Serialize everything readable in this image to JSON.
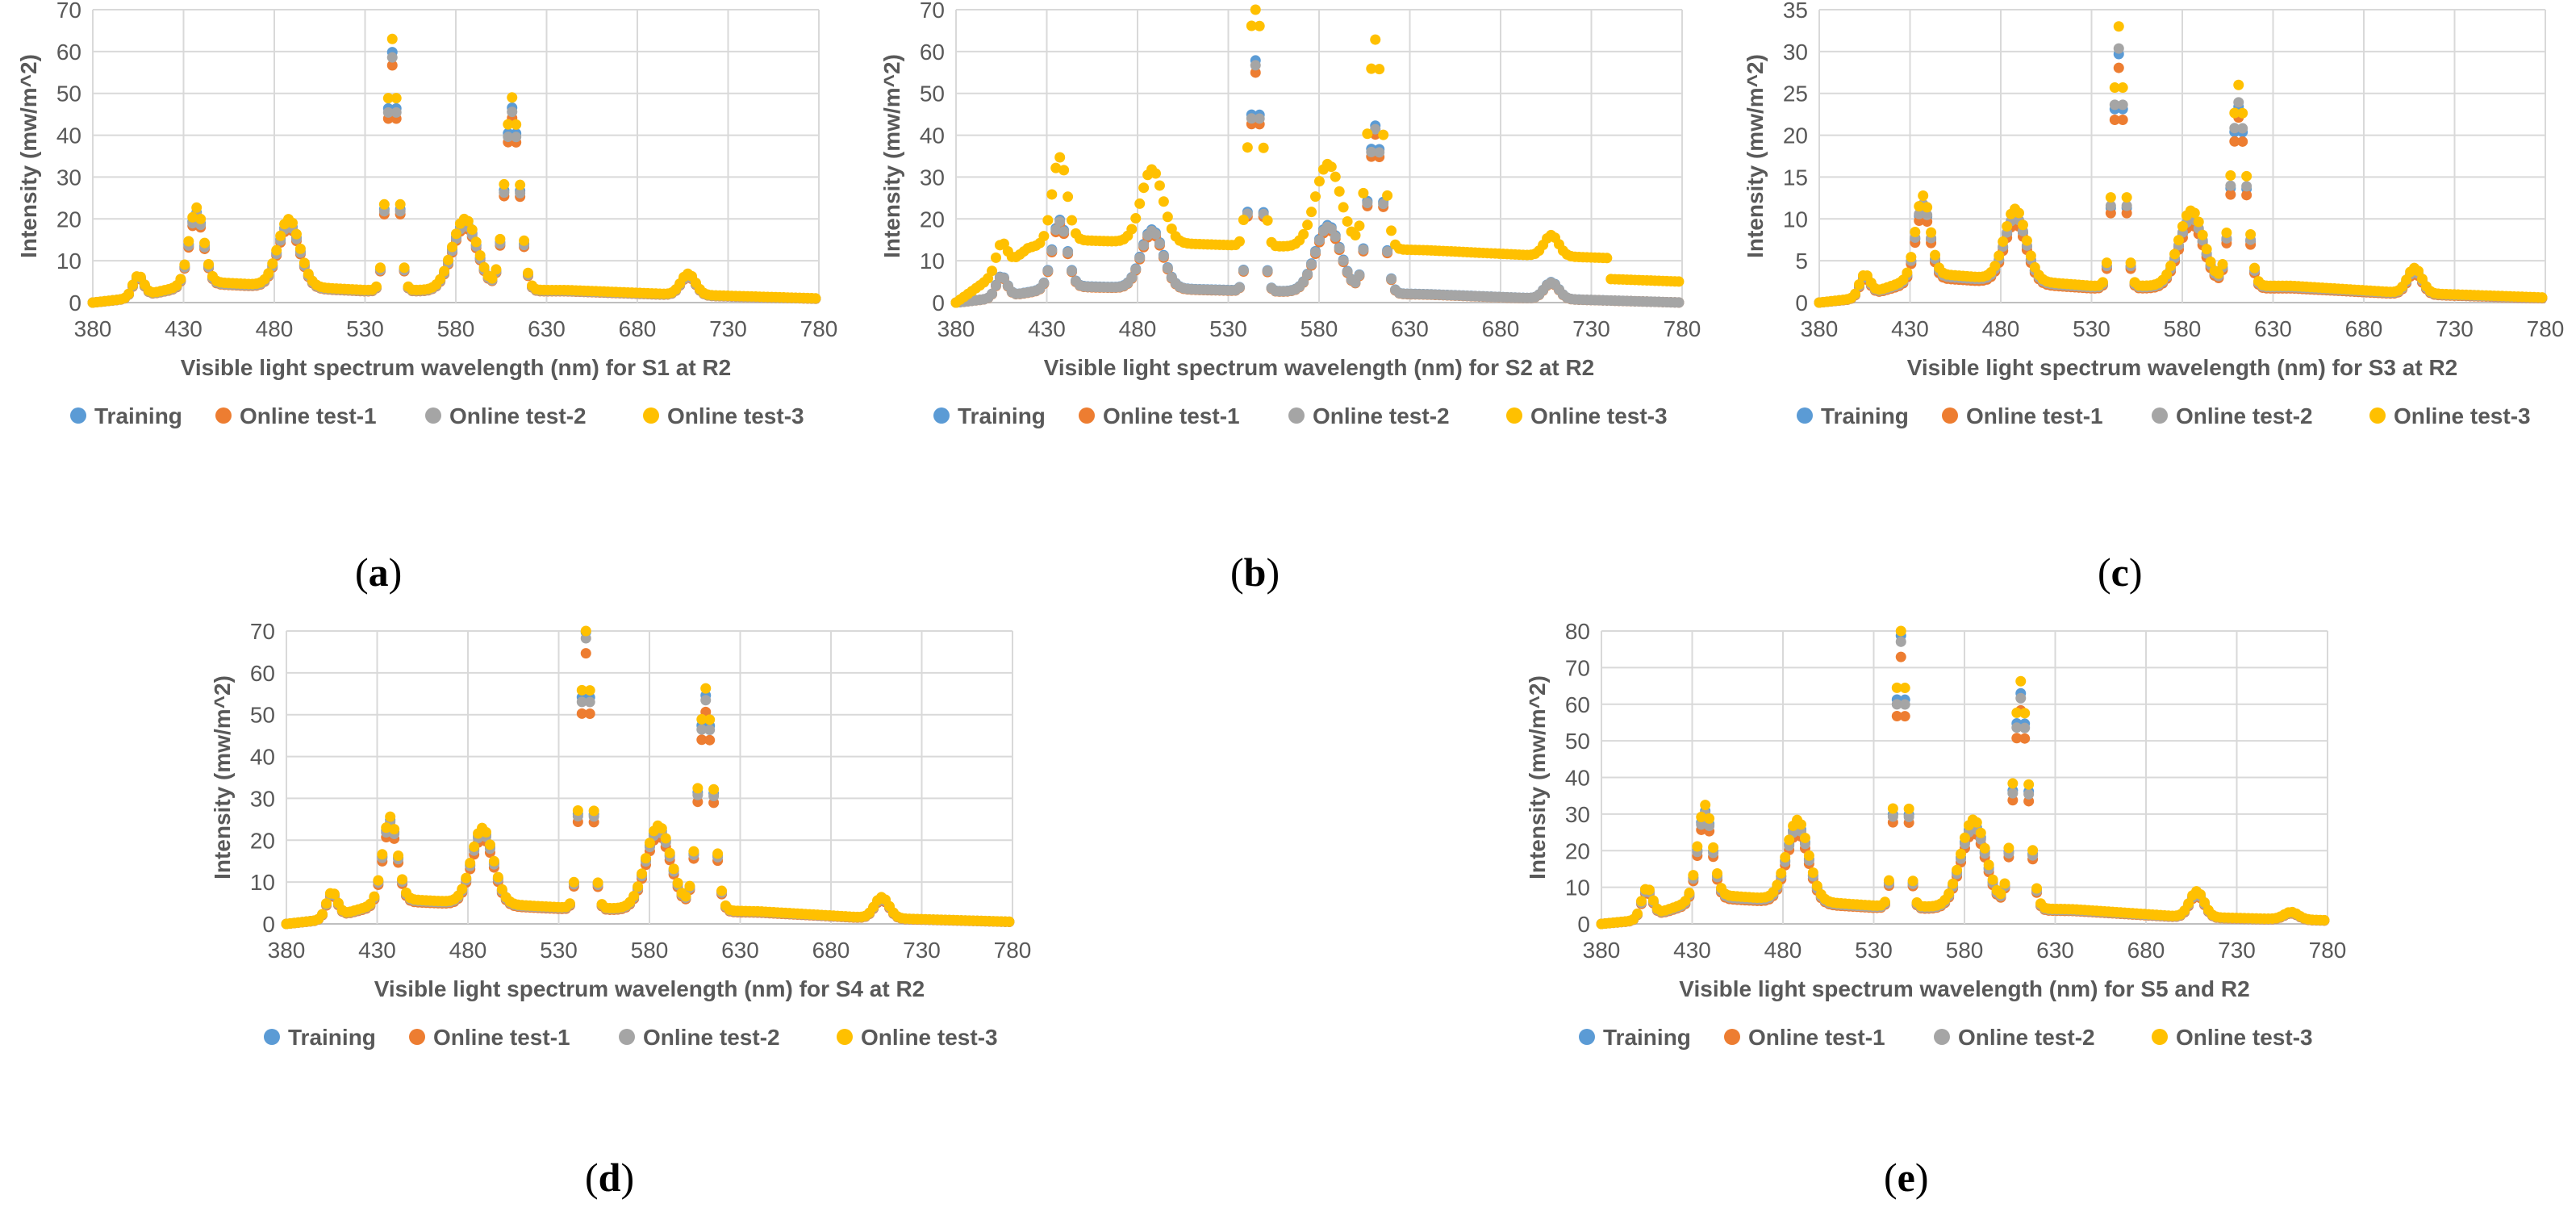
{
  "colors": {
    "training": "#5B9BD5",
    "online1": "#ED7D31",
    "online2": "#A5A5A5",
    "online3": "#FFC000",
    "grid": "#D9D9D9",
    "axis": "#BFBFBF"
  },
  "legend": [
    "Training",
    "Online test-1",
    "Online test-2",
    "Online test-3"
  ],
  "ylabel": "Intensity (mw/m^2)",
  "panel_labels": [
    "a",
    "b",
    "c",
    "d",
    "e"
  ],
  "chart_data": [
    {
      "id": "a",
      "type": "scatter",
      "xlabel": "Visible light spectrum wavelength (nm) for S1 at R2",
      "xlim": [
        380,
        780
      ],
      "xticks": [
        380,
        430,
        480,
        530,
        580,
        630,
        680,
        730,
        780
      ],
      "ylim": [
        0,
        70
      ],
      "yticks": [
        0,
        10,
        20,
        30,
        40,
        50,
        60,
        70
      ],
      "peaks": [
        [
          405,
          5,
          3
        ],
        [
          437,
          18,
          4
        ],
        [
          488,
          16,
          6
        ],
        [
          545,
          60,
          3
        ],
        [
          585,
          17,
          7
        ],
        [
          611,
          46,
          4
        ],
        [
          708,
          5,
          4
        ]
      ],
      "baseline": [
        [
          380,
          0
        ],
        [
          400,
          1
        ],
        [
          440,
          5
        ],
        [
          530,
          3
        ],
        [
          640,
          3
        ],
        [
          700,
          2
        ],
        [
          780,
          1
        ]
      ],
      "series_offsets": {
        "Training": 0.95,
        "Online test-1": 0.9,
        "Online test-2": 0.93,
        "Online test-3": 1.0
      },
      "bg_offset_test3": 0
    },
    {
      "id": "b",
      "type": "scatter",
      "xlabel": "Visible light spectrum wavelength (nm) for S2 at R2",
      "xlim": [
        380,
        780
      ],
      "xticks": [
        380,
        430,
        480,
        530,
        580,
        630,
        680,
        730,
        780
      ],
      "ylim": [
        0,
        70
      ],
      "yticks": [
        0,
        10,
        20,
        30,
        40,
        50,
        60,
        70
      ],
      "peaks": [
        [
          405,
          5,
          3
        ],
        [
          437,
          16,
          4
        ],
        [
          488,
          14,
          6
        ],
        [
          545,
          55,
          3
        ],
        [
          585,
          16,
          7
        ],
        [
          611,
          40,
          4
        ],
        [
          708,
          4,
          4
        ]
      ],
      "baseline": [
        [
          380,
          0
        ],
        [
          400,
          1
        ],
        [
          440,
          4
        ],
        [
          530,
          3
        ],
        [
          640,
          2
        ],
        [
          700,
          1
        ],
        [
          780,
          0
        ]
      ],
      "series_offsets": {
        "Training": 1.0,
        "Online test-1": 0.95,
        "Online test-2": 0.98,
        "Online test-3": 1.25
      },
      "bg_offset_test3": 10
    },
    {
      "id": "c",
      "type": "scatter",
      "xlabel": "Visible light spectrum wavelength (nm) for S3 at R2",
      "xlim": [
        380,
        780
      ],
      "xticks": [
        380,
        430,
        480,
        530,
        580,
        630,
        680,
        730,
        780
      ],
      "ylim": [
        0,
        35
      ],
      "yticks": [
        0,
        5,
        10,
        15,
        20,
        25,
        30,
        35
      ],
      "peaks": [
        [
          405,
          2.5,
          3
        ],
        [
          437,
          9.5,
          4
        ],
        [
          488,
          8.5,
          6
        ],
        [
          545,
          31,
          3
        ],
        [
          585,
          9,
          7
        ],
        [
          611,
          24,
          4
        ],
        [
          708,
          3,
          4
        ]
      ],
      "baseline": [
        [
          380,
          0
        ],
        [
          400,
          0.5
        ],
        [
          440,
          3.5
        ],
        [
          530,
          2
        ],
        [
          640,
          2
        ],
        [
          700,
          1.2
        ],
        [
          780,
          0.6
        ]
      ],
      "series_offsets": {
        "Training": 0.9,
        "Online test-1": 0.85,
        "Online test-2": 0.92,
        "Online test-3": 1.0
      },
      "bg_offset_test3": 0
    },
    {
      "id": "d",
      "type": "scatter",
      "xlabel": "Visible light spectrum wavelength (nm) for S4 at R2",
      "xlim": [
        380,
        780
      ],
      "xticks": [
        380,
        430,
        480,
        530,
        580,
        630,
        680,
        730,
        780
      ],
      "ylim": [
        0,
        70
      ],
      "yticks": [
        0,
        10,
        20,
        30,
        40,
        50,
        60,
        70
      ],
      "peaks": [
        [
          405,
          6,
          3
        ],
        [
          437,
          20,
          4
        ],
        [
          488,
          18,
          6
        ],
        [
          545,
          68,
          3
        ],
        [
          585,
          20,
          7
        ],
        [
          611,
          53,
          4
        ],
        [
          708,
          5,
          4
        ]
      ],
      "baseline": [
        [
          380,
          0
        ],
        [
          400,
          1
        ],
        [
          440,
          6
        ],
        [
          530,
          4
        ],
        [
          640,
          3
        ],
        [
          700,
          1.5
        ],
        [
          780,
          0.5
        ]
      ],
      "series_offsets": {
        "Training": 0.97,
        "Online test-1": 0.9,
        "Online test-2": 0.95,
        "Online test-3": 1.0
      },
      "bg_offset_test3": 0
    },
    {
      "id": "e",
      "type": "scatter",
      "xlabel": "Visible light spectrum wavelength (nm) for S5 and R2",
      "xlim": [
        380,
        780
      ],
      "xticks": [
        380,
        430,
        480,
        530,
        580,
        630,
        680,
        730,
        780
      ],
      "ylim": [
        0,
        80
      ],
      "yticks": [
        0,
        10,
        20,
        30,
        40,
        50,
        60,
        70,
        80
      ],
      "peaks": [
        [
          405,
          8,
          3
        ],
        [
          437,
          25,
          4
        ],
        [
          488,
          22,
          6
        ],
        [
          545,
          78,
          3
        ],
        [
          585,
          24,
          7
        ],
        [
          611,
          62,
          4
        ],
        [
          708,
          7,
          4
        ],
        [
          760,
          2,
          4
        ]
      ],
      "baseline": [
        [
          380,
          0
        ],
        [
          400,
          1
        ],
        [
          440,
          8
        ],
        [
          530,
          5
        ],
        [
          640,
          4
        ],
        [
          700,
          2
        ],
        [
          780,
          1
        ]
      ],
      "series_offsets": {
        "Training": 0.95,
        "Online test-1": 0.88,
        "Online test-2": 0.93,
        "Online test-3": 1.0
      },
      "bg_offset_test3": 0
    }
  ]
}
